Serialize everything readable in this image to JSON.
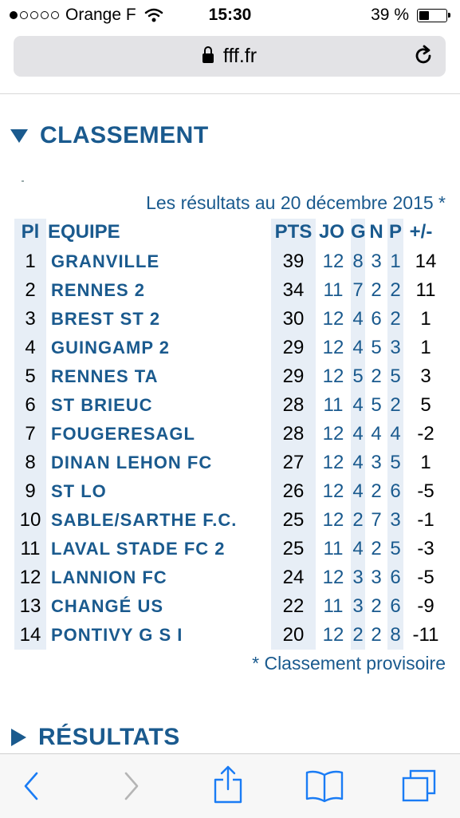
{
  "status_bar": {
    "carrier": "Orange F",
    "time": "15:30",
    "battery_percent": "39 %",
    "battery_level": 0.39,
    "signal_bars_filled": 1,
    "signal_bars_total": 5
  },
  "browser": {
    "url": "fff.fr"
  },
  "classement": {
    "title": "CLASSEMENT",
    "date_line": "Les résultats au 20 décembre 2015 *",
    "headers": {
      "pl": "Pl",
      "team": "EQUIPE",
      "pts": "PTS",
      "jo": "JO",
      "g": "G",
      "n": "N",
      "p": "P",
      "diff": "+/-"
    },
    "rows": [
      {
        "pl": "1",
        "team": "GRANVILLE",
        "pts": "39",
        "jo": "12",
        "g": "8",
        "n": "3",
        "p": "1",
        "diff": "14"
      },
      {
        "pl": "2",
        "team": "RENNES 2",
        "pts": "34",
        "jo": "11",
        "g": "7",
        "n": "2",
        "p": "2",
        "diff": "11"
      },
      {
        "pl": "3",
        "team": "BREST ST 2",
        "pts": "30",
        "jo": "12",
        "g": "4",
        "n": "6",
        "p": "2",
        "diff": "1"
      },
      {
        "pl": "4",
        "team": "GUINGAMP 2",
        "pts": "29",
        "jo": "12",
        "g": "4",
        "n": "5",
        "p": "3",
        "diff": "1"
      },
      {
        "pl": "5",
        "team": "RENNES TA",
        "pts": "29",
        "jo": "12",
        "g": "5",
        "n": "2",
        "p": "5",
        "diff": "3"
      },
      {
        "pl": "6",
        "team": "ST BRIEUC",
        "pts": "28",
        "jo": "11",
        "g": "4",
        "n": "5",
        "p": "2",
        "diff": "5"
      },
      {
        "pl": "7",
        "team": "FOUGERESAGL",
        "pts": "28",
        "jo": "12",
        "g": "4",
        "n": "4",
        "p": "4",
        "diff": "-2"
      },
      {
        "pl": "8",
        "team": "DINAN LEHON FC",
        "pts": "27",
        "jo": "12",
        "g": "4",
        "n": "3",
        "p": "5",
        "diff": "1"
      },
      {
        "pl": "9",
        "team": "ST LO",
        "pts": "26",
        "jo": "12",
        "g": "4",
        "n": "2",
        "p": "6",
        "diff": "-5"
      },
      {
        "pl": "10",
        "team": "SABLE/SARTHE F.C.",
        "pts": "25",
        "jo": "12",
        "g": "2",
        "n": "7",
        "p": "3",
        "diff": "-1"
      },
      {
        "pl": "11",
        "team": "LAVAL STADE FC 2",
        "pts": "25",
        "jo": "11",
        "g": "4",
        "n": "2",
        "p": "5",
        "diff": "-3"
      },
      {
        "pl": "12",
        "team": "LANNION FC",
        "pts": "24",
        "jo": "12",
        "g": "3",
        "n": "3",
        "p": "6",
        "diff": "-5"
      },
      {
        "pl": "13",
        "team": "CHANGÉ US",
        "pts": "22",
        "jo": "11",
        "g": "3",
        "n": "2",
        "p": "6",
        "diff": "-9"
      },
      {
        "pl": "14",
        "team": "PONTIVY G S I",
        "pts": "20",
        "jo": "12",
        "g": "2",
        "n": "2",
        "p": "8",
        "diff": "-11"
      }
    ],
    "footnote": "* Classement provisoire"
  },
  "resultats": {
    "title": "RÉSULTATS"
  },
  "toolbar": {
    "icons": [
      "back-icon",
      "forward-icon",
      "share-icon",
      "bookmarks-icon",
      "tabs-icon"
    ]
  },
  "colors": {
    "accent": "#1a5a8e",
    "column_shade": "#e7eef6",
    "ios_blue": "#1a7cf5",
    "disabled": "#b5b5b5"
  }
}
